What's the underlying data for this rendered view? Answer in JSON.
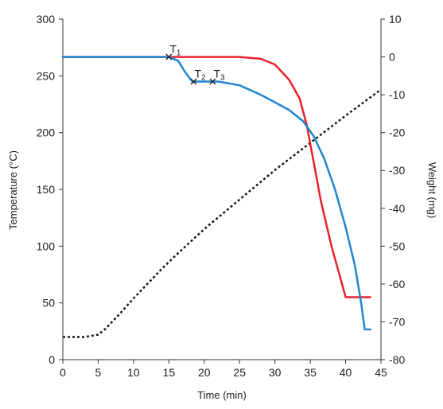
{
  "chart_data": {
    "type": "line",
    "xlabel": "Time (min)",
    "ylabel": "Temperature (°C)",
    "y2label": "Weight (mg)",
    "xlim": [
      0,
      45
    ],
    "ylim": [
      0,
      300
    ],
    "y2lim": [
      -80,
      10
    ],
    "xticks": [
      0,
      5,
      10,
      15,
      20,
      25,
      30,
      35,
      40,
      45
    ],
    "yticks": [
      0,
      50,
      100,
      150,
      200,
      250,
      300
    ],
    "y2ticks": [
      10,
      0,
      -10,
      -20,
      -30,
      -40,
      -50,
      -60,
      -70,
      -80
    ],
    "grid": false,
    "legend": "none",
    "series": [
      {
        "axis": "left",
        "color": "#1a1a1a",
        "style": "dotted",
        "points": [
          [
            0,
            20
          ],
          [
            3,
            20
          ],
          [
            5,
            22
          ],
          [
            6,
            27
          ],
          [
            8,
            40
          ],
          [
            10,
            54
          ],
          [
            12,
            67
          ],
          [
            14,
            80
          ],
          [
            16,
            92
          ],
          [
            20,
            115
          ],
          [
            25,
            141
          ],
          [
            30,
            167
          ],
          [
            35,
            191
          ],
          [
            40,
            215
          ],
          [
            45,
            238
          ]
        ]
      },
      {
        "axis": "right",
        "color": "#e8212b",
        "style": "solid",
        "points": [
          [
            0,
            0
          ],
          [
            15,
            0
          ],
          [
            25,
            0
          ],
          [
            28,
            -0.5
          ],
          [
            30,
            -2
          ],
          [
            32,
            -6
          ],
          [
            33.5,
            -11
          ],
          [
            34.5,
            -18
          ],
          [
            35.5,
            -28
          ],
          [
            36.5,
            -38
          ],
          [
            38,
            -50
          ],
          [
            39.2,
            -58
          ],
          [
            40,
            -63.5
          ],
          [
            41,
            -63.5
          ],
          [
            43.5,
            -63.5
          ]
        ]
      },
      {
        "axis": "right",
        "color": "#1f86d0",
        "style": "solid",
        "points": [
          [
            0,
            0
          ],
          [
            15,
            0
          ],
          [
            16.3,
            -1
          ],
          [
            17.3,
            -4
          ],
          [
            18.3,
            -6.5
          ],
          [
            20,
            -6.5
          ],
          [
            22,
            -6.5
          ],
          [
            25,
            -7.5
          ],
          [
            28,
            -10
          ],
          [
            30,
            -12
          ],
          [
            32,
            -14
          ],
          [
            34,
            -17
          ],
          [
            35.5,
            -21
          ],
          [
            37,
            -27
          ],
          [
            38.5,
            -35
          ],
          [
            40,
            -45
          ],
          [
            41.3,
            -55
          ],
          [
            42.2,
            -65
          ],
          [
            42.7,
            -72
          ],
          [
            43.5,
            -72
          ]
        ]
      }
    ],
    "annotations": [
      {
        "label": "T",
        "sub": "1",
        "x": 15,
        "y": 0
      },
      {
        "label": "T",
        "sub": "2",
        "x": 18.5,
        "y": -6.5
      },
      {
        "label": "T",
        "sub": "3",
        "x": 21.2,
        "y": -6.5
      }
    ]
  }
}
